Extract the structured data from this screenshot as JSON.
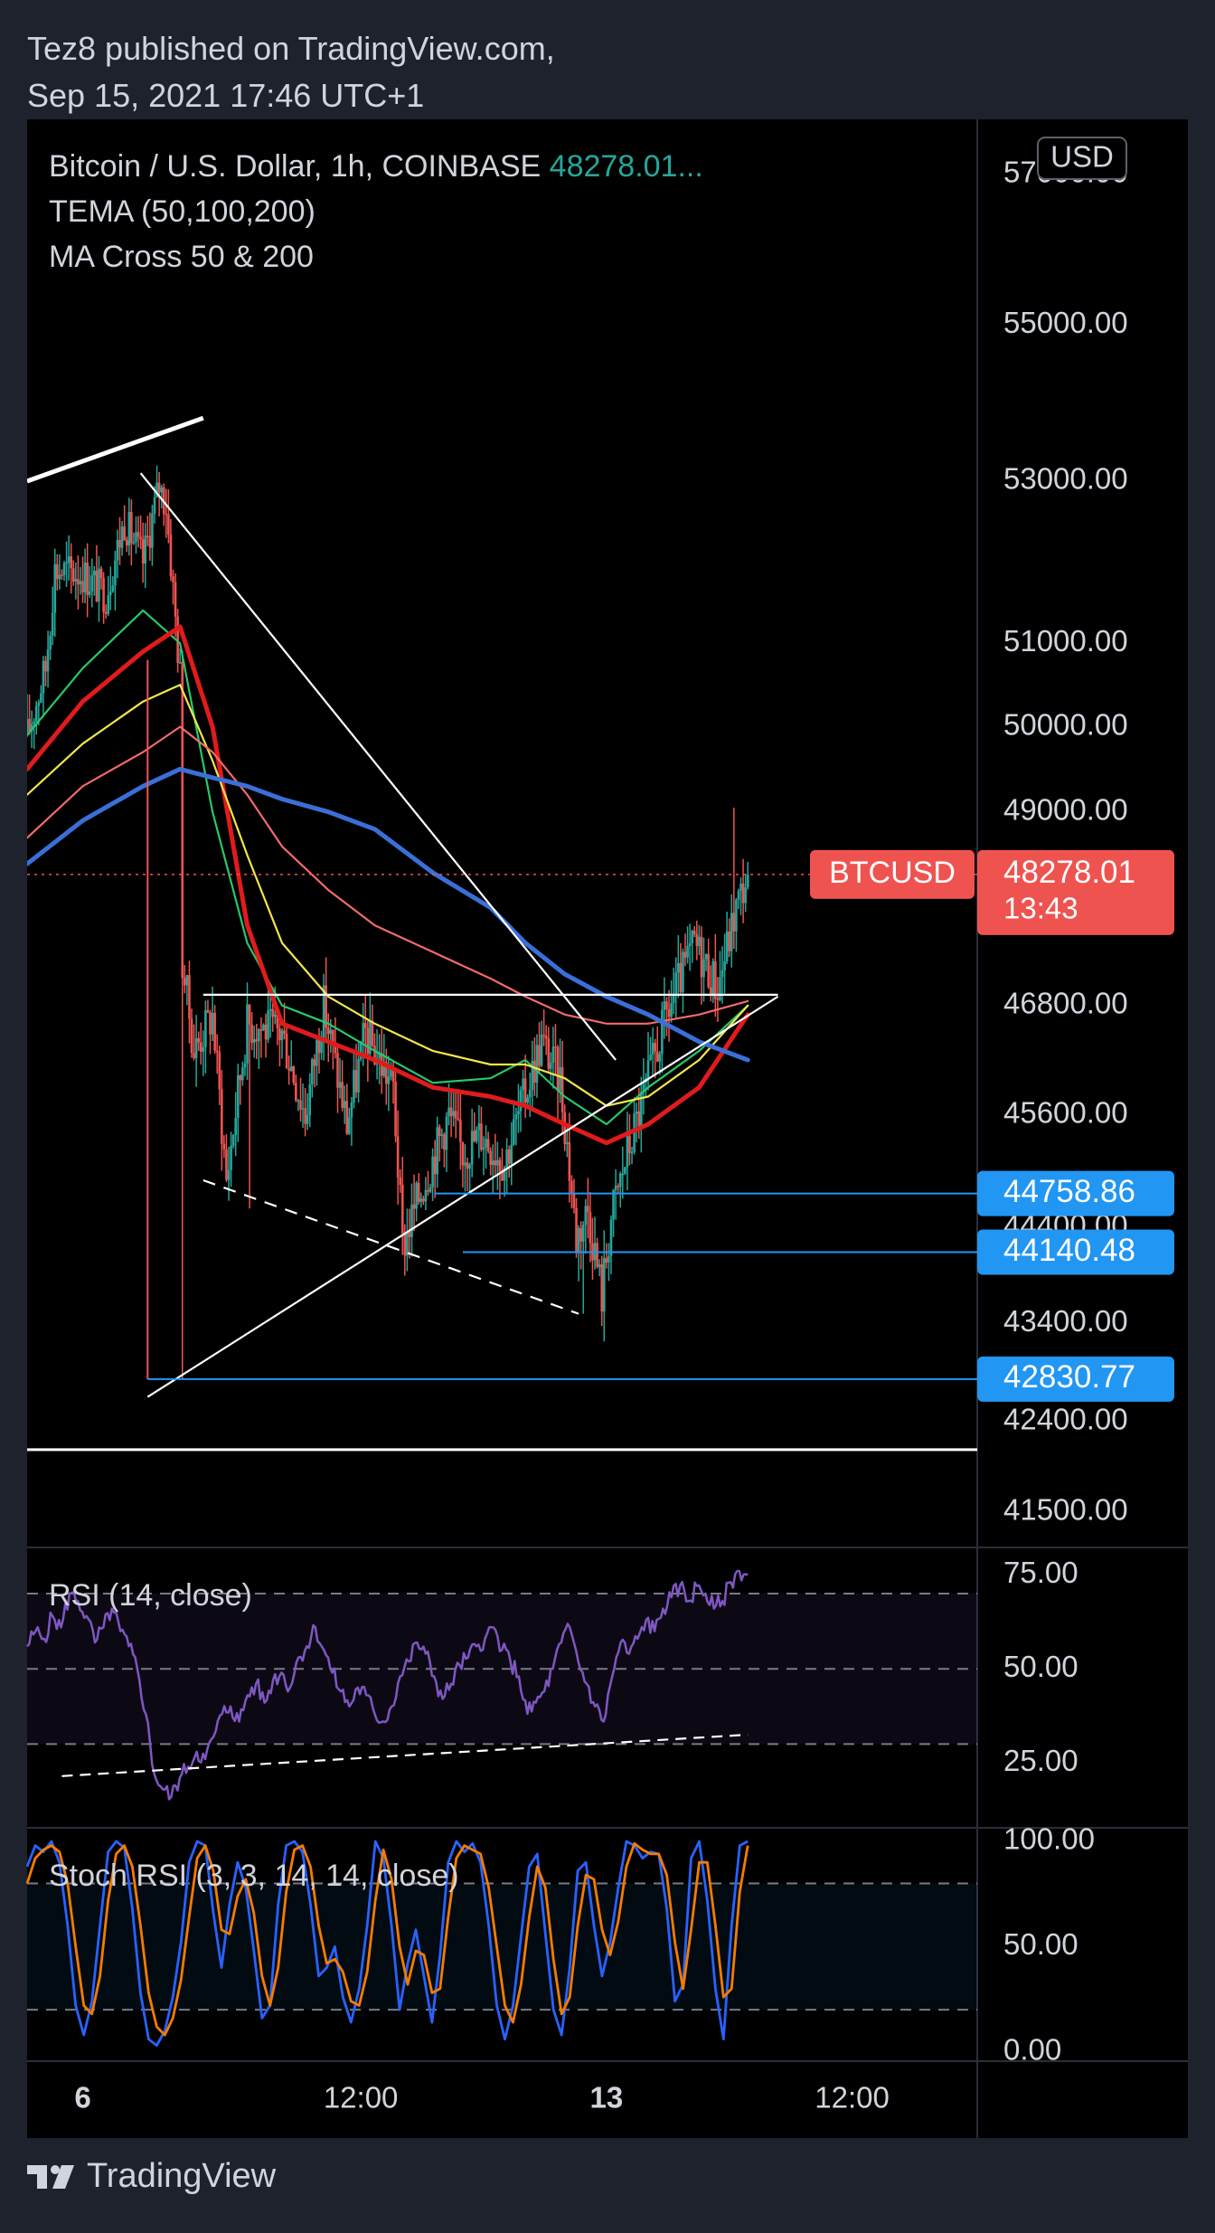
{
  "header": {
    "line1": "Tez8 published on TradingView.com,",
    "line2": "Sep 15, 2021 17:46 UTC+1"
  },
  "footer": {
    "brand": "TradingView",
    "logo_icon": "tradingview-logo-icon"
  },
  "colors": {
    "background": "#000000",
    "frame": "#1e222d",
    "up": "#26a69a",
    "down": "#ef5350",
    "tema_green": "#26c86a",
    "tema_red": "#e01b1b",
    "tema_yellow": "#f2e64b",
    "ma50": "#f26a6a",
    "ma200": "#3a6fd8",
    "rsi": "#7e57c2",
    "stoch_k": "#2962ff",
    "stoch_d": "#f57c00",
    "price_label": "#ef5350",
    "level_label": "#2196f3"
  },
  "chart_data": [
    {
      "type": "candlestick",
      "panel": "price",
      "symbol_line": "Bitcoin / U.S. Dollar, 1h, COINBASE",
      "last_price_text": "48278.01...",
      "indicators": [
        "TEMA (50,100,200)",
        "MA Cross 50 & 200"
      ],
      "currency_button": "USD",
      "y_scale": "log",
      "y_ticks": [
        "57000.00",
        "55000.00",
        "53000.00",
        "51000.00",
        "50000.00",
        "49000.00",
        "46800.00",
        "45600.00",
        "44400.00",
        "43400.00",
        "42400.00",
        "41500.00"
      ],
      "x_ticks": [
        "6",
        "12:00",
        "13",
        "12:00"
      ],
      "x_tick_bold": [
        true,
        false,
        true,
        false
      ],
      "ylim": [
        41000,
        57800
      ],
      "price_label": {
        "symbol": "BTCUSD",
        "price": "48278.01",
        "countdown": "13:43",
        "value": 48278.01
      },
      "level_labels": [
        {
          "text": "44758.86",
          "value": 44758.86
        },
        {
          "text": "44140.48",
          "value": 44140.48
        },
        {
          "text": "42830.77",
          "value": 42830.77
        }
      ],
      "close_path": [
        [
          0,
          49900
        ],
        [
          8,
          50700
        ],
        [
          12,
          51900
        ],
        [
          24,
          51850
        ],
        [
          34,
          51600
        ],
        [
          42,
          52500
        ],
        [
          50,
          52000
        ],
        [
          57,
          52950
        ],
        [
          60,
          52700
        ],
        [
          64,
          51300
        ],
        [
          66,
          50600
        ],
        [
          67,
          47300
        ],
        [
          72,
          46300
        ],
        [
          80,
          46700
        ],
        [
          86,
          44900
        ],
        [
          95,
          46600
        ],
        [
          110,
          46500
        ],
        [
          120,
          45600
        ],
        [
          128,
          46800
        ],
        [
          138,
          45500
        ],
        [
          146,
          46500
        ],
        [
          158,
          45900
        ],
        [
          162,
          44200
        ],
        [
          170,
          44800
        ],
        [
          182,
          45600
        ],
        [
          188,
          45200
        ],
        [
          196,
          45400
        ],
        [
          206,
          45100
        ],
        [
          212,
          45600
        ],
        [
          222,
          46400
        ],
        [
          230,
          46000
        ],
        [
          237,
          44300
        ],
        [
          242,
          44600
        ],
        [
          248,
          43700
        ],
        [
          252,
          44500
        ],
        [
          258,
          45100
        ],
        [
          266,
          45800
        ],
        [
          276,
          46700
        ],
        [
          288,
          47500
        ],
        [
          298,
          47000
        ],
        [
          306,
          47900
        ],
        [
          311,
          48280
        ]
      ],
      "series": [
        {
          "name": "TEMA 50",
          "color": "tema_green",
          "points": [
            [
              0,
              49900
            ],
            [
              24,
              50700
            ],
            [
              50,
              51400
            ],
            [
              66,
              51000
            ],
            [
              80,
              49000
            ],
            [
              95,
              47500
            ],
            [
              110,
              46800
            ],
            [
              130,
              46600
            ],
            [
              150,
              46300
            ],
            [
              175,
              45950
            ],
            [
              200,
              46000
            ],
            [
              215,
              46200
            ],
            [
              232,
              45800
            ],
            [
              250,
              45500
            ],
            [
              268,
              45900
            ],
            [
              290,
              46300
            ],
            [
              311,
              46800
            ]
          ]
        },
        {
          "name": "TEMA 100",
          "color": "tema_red",
          "points": [
            [
              0,
              49500
            ],
            [
              24,
              50300
            ],
            [
              50,
              50900
            ],
            [
              66,
              51200
            ],
            [
              80,
              50000
            ],
            [
              95,
              47700
            ],
            [
              110,
              46600
            ],
            [
              130,
              46400
            ],
            [
              150,
              46200
            ],
            [
              175,
              45900
            ],
            [
              200,
              45800
            ],
            [
              215,
              45700
            ],
            [
              232,
              45500
            ],
            [
              250,
              45300
            ],
            [
              268,
              45500
            ],
            [
              290,
              45900
            ],
            [
              311,
              46700
            ]
          ]
        },
        {
          "name": "TEMA 200",
          "color": "tema_yellow",
          "points": [
            [
              0,
              49200
            ],
            [
              24,
              49800
            ],
            [
              50,
              50300
            ],
            [
              66,
              50500
            ],
            [
              80,
              49600
            ],
            [
              95,
              48500
            ],
            [
              110,
              47500
            ],
            [
              130,
              46900
            ],
            [
              150,
              46600
            ],
            [
              175,
              46300
            ],
            [
              200,
              46150
            ],
            [
              215,
              46150
            ],
            [
              232,
              46000
            ],
            [
              250,
              45700
            ],
            [
              268,
              45800
            ],
            [
              290,
              46200
            ],
            [
              311,
              46800
            ]
          ]
        },
        {
          "name": "MA 50",
          "color": "ma50",
          "points": [
            [
              0,
              48700
            ],
            [
              24,
              49300
            ],
            [
              50,
              49700
            ],
            [
              66,
              50000
            ],
            [
              80,
              49700
            ],
            [
              95,
              49200
            ],
            [
              110,
              48600
            ],
            [
              130,
              48100
            ],
            [
              150,
              47700
            ],
            [
              175,
              47400
            ],
            [
              200,
              47100
            ],
            [
              215,
              46900
            ],
            [
              232,
              46700
            ],
            [
              250,
              46600
            ],
            [
              268,
              46600
            ],
            [
              290,
              46700
            ],
            [
              311,
              46850
            ]
          ]
        },
        {
          "name": "MA 200",
          "color": "ma200",
          "points": [
            [
              0,
              48400
            ],
            [
              24,
              48900
            ],
            [
              50,
              49300
            ],
            [
              66,
              49500
            ],
            [
              80,
              49400
            ],
            [
              95,
              49300
            ],
            [
              110,
              49150
            ],
            [
              130,
              49000
            ],
            [
              150,
              48800
            ],
            [
              175,
              48300
            ],
            [
              200,
              47900
            ],
            [
              215,
              47500
            ],
            [
              232,
              47150
            ],
            [
              250,
              46900
            ],
            [
              268,
              46700
            ],
            [
              290,
              46400
            ],
            [
              311,
              46200
            ]
          ]
        }
      ],
      "drawings": {
        "trendlines": [
          {
            "from": [
              0,
              53000
            ],
            "to": [
              76,
              53800
            ]
          },
          {
            "from": [
              49,
              53100
            ],
            "to": [
              254,
              46200
            ]
          },
          {
            "from": [
              52,
              42650
            ],
            "to": [
              324,
              46900
            ]
          },
          {
            "from": [
              76,
              46920
            ],
            "to": [
              324,
              46920
            ]
          },
          {
            "from": [
              76,
              44900
            ],
            "to": [
              238,
              43500
            ]
          }
        ],
        "horizontal_support": 42120
      }
    },
    {
      "type": "line",
      "panel": "rsi",
      "title": "RSI (14, close)",
      "y_ticks": [
        "75.00",
        "50.00",
        "25.00"
      ],
      "ylim": [
        8,
        82
      ],
      "bands": [
        70,
        50,
        30
      ],
      "values": [
        56,
        60,
        58,
        64,
        61,
        70,
        68,
        64,
        57,
        61,
        66,
        60,
        56,
        50,
        38,
        22,
        18,
        16,
        21,
        24,
        28,
        26,
        32,
        38,
        40,
        36,
        43,
        46,
        41,
        47,
        49,
        45,
        53,
        56,
        61,
        55,
        49,
        44,
        40,
        45,
        43,
        38,
        36,
        40,
        48,
        52,
        57,
        54,
        48,
        42,
        46,
        51,
        53,
        56,
        58,
        61,
        55,
        52,
        48,
        38,
        41,
        44,
        50,
        57,
        61,
        52,
        46,
        40,
        36,
        48,
        57,
        54,
        58,
        63,
        60,
        66,
        69,
        72,
        68,
        72,
        70,
        66,
        68,
        73,
        76,
        75
      ],
      "trendline": {
        "from": [
          15,
          21.5
        ],
        "to": [
          85,
          32.5
        ]
      }
    },
    {
      "type": "line",
      "panel": "stoch_rsi",
      "title": "Stoch RSI (3, 3, 14, 14, close)",
      "y_ticks": [
        "100.00",
        "50.00",
        "0.00"
      ],
      "ylim": [
        -4,
        106
      ],
      "bands": [
        80,
        20
      ],
      "series": [
        {
          "name": "K",
          "color": "stoch_k",
          "values": [
            88,
            98,
            95,
            100,
            90,
            60,
            22,
            8,
            24,
            60,
            95,
            100,
            97,
            68,
            28,
            6,
            3,
            10,
            26,
            52,
            90,
            100,
            98,
            66,
            40,
            70,
            90,
            78,
            48,
            16,
            22,
            70,
            98,
            100,
            95,
            70,
            36,
            40,
            50,
            26,
            14,
            30,
            60,
            100,
            92,
            60,
            20,
            42,
            58,
            36,
            14,
            46,
            90,
            100,
            95,
            99,
            90,
            60,
            22,
            6,
            22,
            55,
            88,
            94,
            56,
            20,
            8,
            40,
            86,
            90,
            60,
            36,
            52,
            78,
            100,
            98,
            92,
            95,
            94,
            68,
            24,
            32,
            92,
            100,
            72,
            30,
            6,
            60,
            98,
            100
          ]
        },
        {
          "name": "D",
          "color": "stoch_d",
          "values": [
            80,
            92,
            96,
            98,
            95,
            80,
            50,
            22,
            18,
            36,
            72,
            94,
            98,
            88,
            60,
            28,
            12,
            8,
            16,
            34,
            64,
            92,
            98,
            86,
            58,
            56,
            74,
            82,
            66,
            36,
            22,
            40,
            76,
            96,
            98,
            88,
            60,
            42,
            44,
            38,
            24,
            22,
            38,
            72,
            96,
            82,
            50,
            32,
            48,
            46,
            28,
            30,
            64,
            92,
            98,
            96,
            94,
            78,
            50,
            22,
            14,
            32,
            64,
            88,
            78,
            44,
            18,
            26,
            60,
            84,
            82,
            58,
            46,
            62,
            88,
            99,
            96,
            94,
            94,
            84,
            52,
            30,
            58,
            90,
            90,
            60,
            26,
            30,
            76,
            98
          ]
        }
      ]
    }
  ]
}
